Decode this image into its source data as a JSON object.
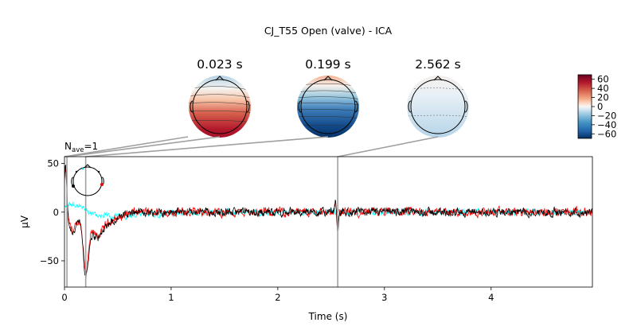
{
  "chart_data": {
    "type": "line",
    "title": "CJ_T55 Open (valve) - ICA",
    "nave_label": "N",
    "nave_sub": "ave",
    "nave_value": "=1",
    "xlabel": "Time (s)",
    "ylabel": "µV",
    "xlim": [
      0,
      4.95
    ],
    "ylim": [
      -77,
      57
    ],
    "xticks": [
      0,
      1,
      2,
      3,
      4
    ],
    "yticks": [
      50,
      0,
      -50
    ],
    "series": [
      {
        "color": "#000000"
      },
      {
        "color": "#ff0000"
      },
      {
        "color": "#00ffff"
      }
    ],
    "markers": [
      0.023,
      0.199,
      2.562
    ],
    "topomaps": [
      {
        "time_label": "0.023 s",
        "style": "front-blue-back-red"
      },
      {
        "time_label": "0.199 s",
        "style": "front-red-back-blue"
      },
      {
        "time_label": "2.562 s",
        "style": "faint-blue"
      }
    ],
    "colorbar": {
      "ticks": [
        60,
        40,
        20,
        0,
        -20,
        -40,
        -60
      ],
      "range": [
        -70,
        70
      ]
    }
  }
}
